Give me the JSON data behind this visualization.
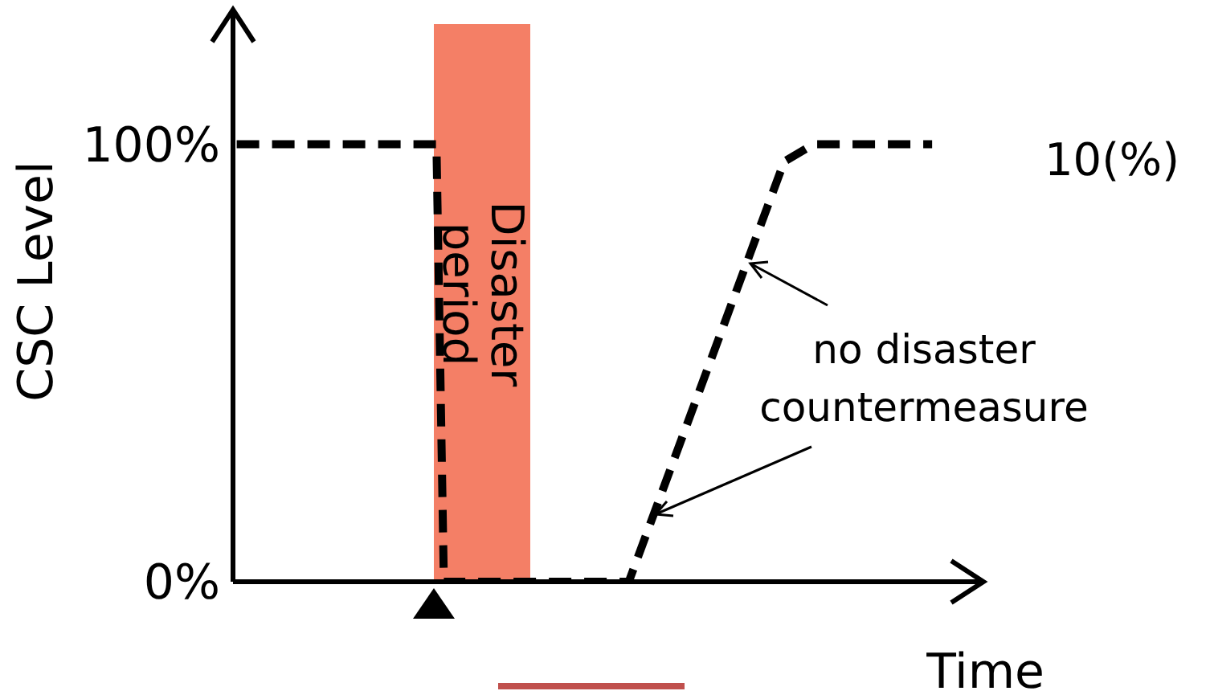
{
  "chart_data": {
    "type": "line",
    "xlabel": "Time",
    "ylabel": "CSC Level",
    "categories": [
      null,
      null,
      null,
      null,
      null,
      null,
      null,
      null,
      null,
      null,
      null,
      null,
      null,
      null,
      null,
      null,
      null,
      null,
      null,
      null,
      null,
      null,
      null,
      null,
      null,
      null,
      null,
      null,
      null,
      null,
      null,
      null,
      null,
      null,
      null,
      null,
      null,
      null,
      null,
      null,
      null,
      null,
      null,
      null,
      null,
      null,
      null,
      null,
      null,
      null,
      null,
      null,
      null,
      null,
      null,
      null,
      null,
      null,
      null,
      null,
      null,
      null,
      null,
      null,
      null,
      null,
      null,
      null,
      null,
      null,
      null,
      null,
      null,
      null,
      null,
      null,
      null,
      null,
      null,
      null,
      null,
      null,
      null,
      null,
      null,
      null,
      null,
      null,
      null,
      null,
      null,
      null,
      null,
      null,
      null,
      null,
      null,
      null,
      null,
      null,
      null
    ],
    "series": [
      {
        "color": "#000000",
        "values": [
          100,
          null,
          null,
          null,
          null,
          null,
          null,
          null,
          null,
          null,
          null,
          null,
          null,
          null,
          null,
          null,
          null,
          null,
          null,
          null,
          null,
          null,
          null,
          null,
          null,
          null,
          null,
          100,
          0,
          null,
          null,
          null,
          null,
          null,
          null,
          null,
          null,
          null,
          null,
          null,
          null,
          null,
          null,
          null,
          null,
          null,
          null,
          null,
          null,
          null,
          null,
          null,
          null,
          0,
          null,
          null,
          null,
          null,
          null,
          null,
          null,
          null,
          null,
          null,
          null,
          null,
          null,
          null,
          null,
          null,
          null,
          null,
          null,
          null,
          96,
          null,
          null,
          null,
          100,
          null,
          null,
          null,
          null,
          null,
          null,
          null,
          null,
          null,
          null,
          null,
          null,
          null,
          null,
          null,
          100,
          null,
          null,
          null,
          null,
          null,
          null
        ]
      }
    ],
    "ylim": [
      0,
      130
    ],
    "yticks": [
      {
        "value": 0,
        "label": "0%"
      },
      {
        "value": 100,
        "label": "100%"
      }
    ],
    "tick_labels": "y",
    "line_style": "dashed",
    "marker": "none",
    "annotations": [
      "Disaster period",
      "10(%)",
      "no disaster countermeasure"
    ]
  }
}
